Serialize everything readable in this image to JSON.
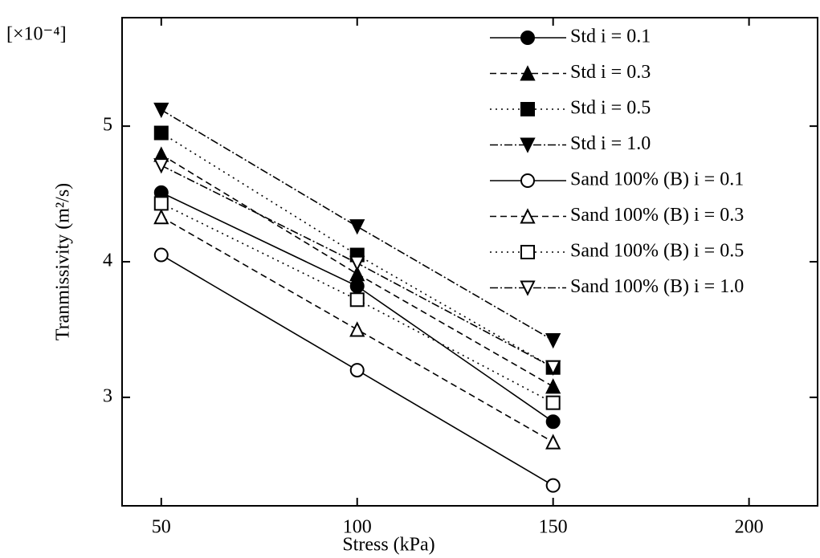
{
  "chart_data": {
    "type": "line",
    "x_label": "Stress (kPa)",
    "y_label": "Tranmissivity (m²/s)",
    "y_multiplier": "[×10⁻⁴]",
    "x": [
      50,
      100,
      150
    ],
    "xlim": [
      40,
      217.5
    ],
    "xticks": [
      50,
      100,
      150,
      200
    ],
    "ylim": [
      2.2,
      5.8
    ],
    "yticks": [
      3,
      4,
      5
    ],
    "series": [
      {
        "name": "Std  i = 0.1",
        "color": "#000000",
        "marker": "circle",
        "filled": true,
        "dash": "solid",
        "values": [
          4.51,
          3.82,
          2.82
        ]
      },
      {
        "name": "Std  i = 0.3",
        "color": "#000000",
        "marker": "triangle-up",
        "filled": true,
        "dash": "dashed",
        "values": [
          4.79,
          3.91,
          3.08
        ]
      },
      {
        "name": "Std  i = 0.5",
        "color": "#000000",
        "marker": "square",
        "filled": true,
        "dash": "dotted",
        "values": [
          4.95,
          4.05,
          3.22
        ]
      },
      {
        "name": "Std  i = 1.0",
        "color": "#000000",
        "marker": "triangle-down",
        "filled": true,
        "dash": "dashdot",
        "values": [
          5.12,
          4.26,
          3.42
        ]
      },
      {
        "name": "Sand 100% (B) i = 0.1",
        "color": "#000000",
        "marker": "circle",
        "filled": false,
        "dash": "solid",
        "values": [
          4.05,
          3.2,
          2.35
        ]
      },
      {
        "name": "Sand 100% (B) i = 0.3",
        "color": "#000000",
        "marker": "triangle-up",
        "filled": false,
        "dash": "dashed",
        "values": [
          4.33,
          3.5,
          2.67
        ]
      },
      {
        "name": "Sand 100% (B) i = 0.5",
        "color": "#000000",
        "marker": "square",
        "filled": false,
        "dash": "dotted",
        "values": [
          4.43,
          3.72,
          2.96
        ]
      },
      {
        "name": "Sand 100% (B) i = 1.0",
        "color": "#000000",
        "marker": "triangle-down",
        "filled": false,
        "dash": "dashdot",
        "values": [
          4.71,
          3.99,
          3.22
        ]
      }
    ]
  }
}
